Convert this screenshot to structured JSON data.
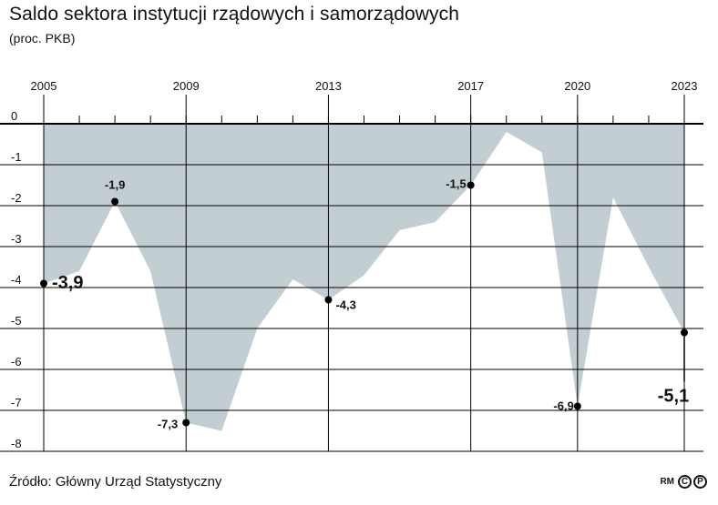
{
  "title": "Saldo sektora instytucji rządowych i samorządowych",
  "subtitle": "(proc. PKB)",
  "source": "Źródło: Główny Urząd Statystyczny",
  "logo": {
    "text": "RM",
    "circle1": "C",
    "circle2": "P"
  },
  "colors": {
    "area": "#c3ced3",
    "line": "#000000",
    "text": "#111111"
  },
  "chart_data": {
    "type": "area",
    "x": [
      2005,
      2006,
      2007,
      2008,
      2009,
      2010,
      2011,
      2012,
      2013,
      2014,
      2015,
      2016,
      2017,
      2018,
      2019,
      2020,
      2021,
      2022,
      2023
    ],
    "values": [
      -3.9,
      -3.6,
      -1.9,
      -3.6,
      -7.3,
      -7.5,
      -5.0,
      -3.8,
      -4.3,
      -3.7,
      -2.6,
      -2.4,
      -1.5,
      -0.2,
      -0.7,
      -6.9,
      -1.8,
      -3.5,
      -5.1
    ],
    "ylim": [
      -8,
      0
    ],
    "yticks": [
      0,
      -1,
      -2,
      -3,
      -4,
      -5,
      -6,
      -7,
      -8
    ],
    "ytick_labels": [
      "0",
      "-1",
      "-2",
      "-3",
      "-4",
      "-5",
      "-6",
      "-7",
      "-8"
    ],
    "xtick_labels": [
      {
        "year": 2005,
        "label": "2005"
      },
      {
        "year": 2009,
        "label": "2009"
      },
      {
        "year": 2013,
        "label": "2013"
      },
      {
        "year": 2017,
        "label": "2017"
      },
      {
        "year": 2020,
        "label": "2020"
      },
      {
        "year": 2023,
        "label": "2023"
      }
    ],
    "major_gridlines_x": [
      2005,
      2009,
      2013,
      2017,
      2020,
      2023
    ],
    "annotations": [
      {
        "year": 2005,
        "value": -3.9,
        "label": "-3,9",
        "emphasis": true
      },
      {
        "year": 2007,
        "value": -1.9,
        "label": "-1,9",
        "emphasis": false
      },
      {
        "year": 2009,
        "value": -7.3,
        "label": "-7,3",
        "emphasis": false
      },
      {
        "year": 2013,
        "value": -4.3,
        "label": "-4,3",
        "emphasis": false
      },
      {
        "year": 2017,
        "value": -1.5,
        "label": "-1,5",
        "emphasis": false
      },
      {
        "year": 2020,
        "value": -6.9,
        "label": "-6,9",
        "emphasis": false
      },
      {
        "year": 2023,
        "value": -5.1,
        "label": "-5,1",
        "emphasis": true
      }
    ],
    "grid": true,
    "legend": "none"
  }
}
